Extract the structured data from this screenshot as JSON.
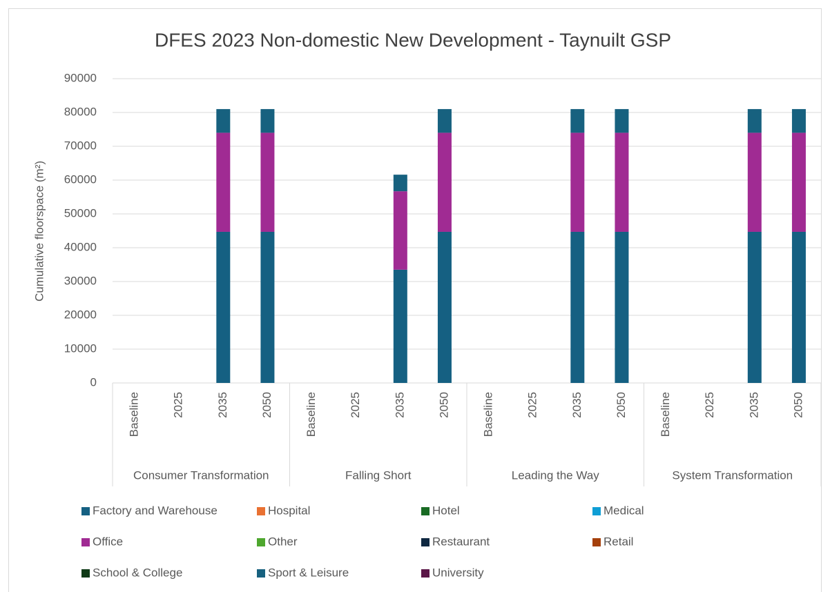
{
  "chart_data": {
    "type": "stacked_bar",
    "title": "DFES 2023 Non-domestic New Development - Taynuilt GSP",
    "y_label": "Cumulative floorspace (m²)",
    "groups": [
      "Consumer Transformation",
      "Falling Short",
      "Leading the Way",
      "System Transformation"
    ],
    "categories": [
      "Baseline",
      "2025",
      "2035",
      "2050",
      "Baseline",
      "2025",
      "2035",
      "2050",
      "Baseline",
      "2025",
      "2035",
      "2050",
      "Baseline",
      "2025",
      "2035",
      "2050"
    ],
    "ylim": [
      0,
      90000
    ],
    "yticks": [
      0,
      10000,
      20000,
      30000,
      40000,
      50000,
      60000,
      70000,
      80000,
      90000
    ],
    "grid": true,
    "legend": "bottom",
    "series": [
      {
        "name": "Factory and Warehouse",
        "color": "#156082",
        "values": [
          0,
          0,
          44700,
          44700,
          0,
          0,
          33500,
          44700,
          0,
          0,
          44700,
          44700,
          0,
          0,
          44700,
          44700
        ]
      },
      {
        "name": "Hospital",
        "color": "#e97132",
        "values": [
          0,
          0,
          0,
          0,
          0,
          0,
          0,
          0,
          0,
          0,
          0,
          0,
          0,
          0,
          0,
          0
        ]
      },
      {
        "name": "Hotel",
        "color": "#196b24",
        "values": [
          0,
          0,
          0,
          0,
          0,
          0,
          0,
          0,
          0,
          0,
          0,
          0,
          0,
          0,
          0,
          0
        ]
      },
      {
        "name": "Medical",
        "color": "#0f9ed5",
        "values": [
          0,
          0,
          0,
          0,
          0,
          0,
          0,
          0,
          0,
          0,
          0,
          0,
          0,
          0,
          0,
          0
        ]
      },
      {
        "name": "Office",
        "color": "#a02b93",
        "values": [
          0,
          0,
          29300,
          29300,
          0,
          0,
          23200,
          29300,
          0,
          0,
          29300,
          29300,
          0,
          0,
          29300,
          29300
        ]
      },
      {
        "name": "Other",
        "color": "#4ea72e",
        "values": [
          0,
          0,
          0,
          0,
          0,
          0,
          0,
          0,
          0,
          0,
          0,
          0,
          0,
          0,
          0,
          0
        ]
      },
      {
        "name": "Restaurant",
        "color": "#0e2841",
        "values": [
          0,
          0,
          0,
          0,
          0,
          0,
          0,
          0,
          0,
          0,
          0,
          0,
          0,
          0,
          0,
          0
        ]
      },
      {
        "name": "Retail",
        "color": "#a5400b",
        "values": [
          0,
          0,
          0,
          0,
          0,
          0,
          0,
          0,
          0,
          0,
          0,
          0,
          0,
          0,
          0,
          0
        ]
      },
      {
        "name": "School & College",
        "color": "#0f3a17",
        "values": [
          0,
          0,
          0,
          0,
          0,
          0,
          0,
          0,
          0,
          0,
          0,
          0,
          0,
          0,
          0,
          0
        ]
      },
      {
        "name": "Sport & Leisure",
        "color": "#17617f",
        "values": [
          0,
          0,
          7000,
          7000,
          0,
          0,
          4900,
          7000,
          0,
          0,
          7000,
          7000,
          0,
          0,
          7000,
          7000
        ]
      },
      {
        "name": "University",
        "color": "#5b1647",
        "values": [
          0,
          0,
          0,
          0,
          0,
          0,
          0,
          0,
          0,
          0,
          0,
          0,
          0,
          0,
          0,
          0
        ]
      }
    ]
  }
}
